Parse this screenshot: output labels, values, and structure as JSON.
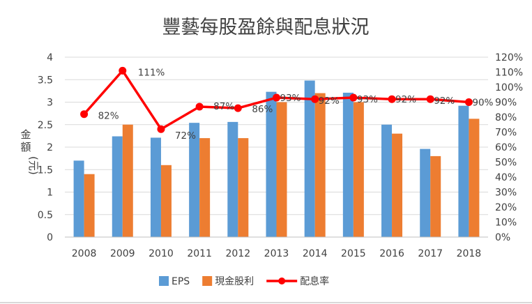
{
  "chart_data": {
    "type": "bar",
    "title": "豐藝每股盈餘與配息狀況",
    "ylabel": "金額(元)",
    "xlabel": "",
    "categories": [
      "2008",
      "2009",
      "2010",
      "2011",
      "2012",
      "2013",
      "2014",
      "2015",
      "2016",
      "2017",
      "2018"
    ],
    "ylim": [
      0,
      4
    ],
    "y_ticks": [
      "0",
      "0.5",
      "1",
      "1.5",
      "2",
      "2.5",
      "3",
      "3.5",
      "4"
    ],
    "y2lim": [
      0,
      120
    ],
    "y2_ticks": [
      "0%",
      "10%",
      "20%",
      "30%",
      "40%",
      "50%",
      "60%",
      "70%",
      "80%",
      "90%",
      "100%",
      "110%",
      "120%"
    ],
    "grid": true,
    "legend_position": "bottom",
    "series": [
      {
        "name": "EPS",
        "type": "bar",
        "axis": "left",
        "color": "#5b9bd5",
        "values": [
          1.7,
          2.24,
          2.21,
          2.54,
          2.56,
          3.23,
          3.48,
          3.21,
          2.5,
          1.96,
          2.92
        ]
      },
      {
        "name": "現金股利",
        "type": "bar",
        "axis": "left",
        "color": "#ed7d31",
        "values": [
          1.4,
          2.5,
          1.6,
          2.2,
          2.2,
          3.0,
          3.2,
          3.0,
          2.3,
          1.8,
          2.63
        ]
      },
      {
        "name": "配息率",
        "type": "line",
        "axis": "right",
        "color": "#ff0000",
        "values": [
          82,
          111,
          72,
          87,
          86,
          93,
          92,
          93,
          92,
          92,
          90
        ],
        "labels": [
          "82%",
          "111%",
          "72%",
          "87%",
          "86%",
          "93%",
          "92%",
          "93%",
          "92%",
          "92%",
          "90%"
        ]
      }
    ]
  }
}
